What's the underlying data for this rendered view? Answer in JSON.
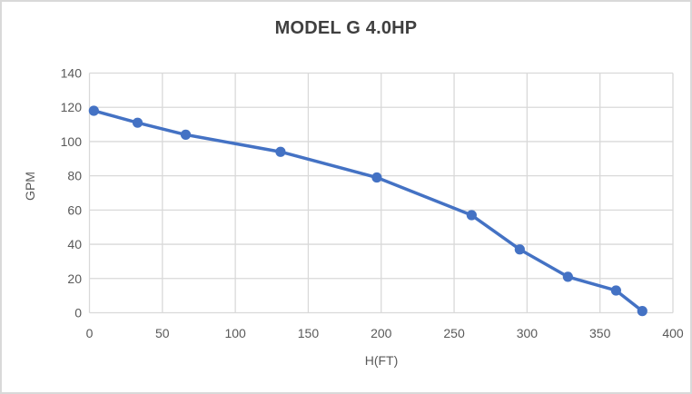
{
  "chart_data": {
    "type": "line",
    "title": "MODEL G 4.0HP",
    "xlabel": "H(FT)",
    "ylabel": "GPM",
    "x": [
      3,
      33,
      66,
      131,
      197,
      262,
      295,
      328,
      361,
      379
    ],
    "y": [
      118,
      111,
      104,
      94,
      79,
      57,
      37,
      21,
      13,
      1
    ],
    "xlim": [
      0,
      400
    ],
    "ylim": [
      0,
      140
    ],
    "x_ticks": [
      0,
      50,
      100,
      150,
      200,
      250,
      300,
      350,
      400
    ],
    "y_ticks": [
      0,
      20,
      40,
      60,
      80,
      100,
      120,
      140
    ],
    "grid": true,
    "legend": false,
    "colors": {
      "line": "#4472C4",
      "marker": "#4472C4",
      "gridline": "#D9D9D9",
      "tick_label": "#595959",
      "title": "#3F3F3F",
      "axis_label": "#595959",
      "background": "#FFFFFF",
      "border": "#D9D9D9"
    }
  }
}
